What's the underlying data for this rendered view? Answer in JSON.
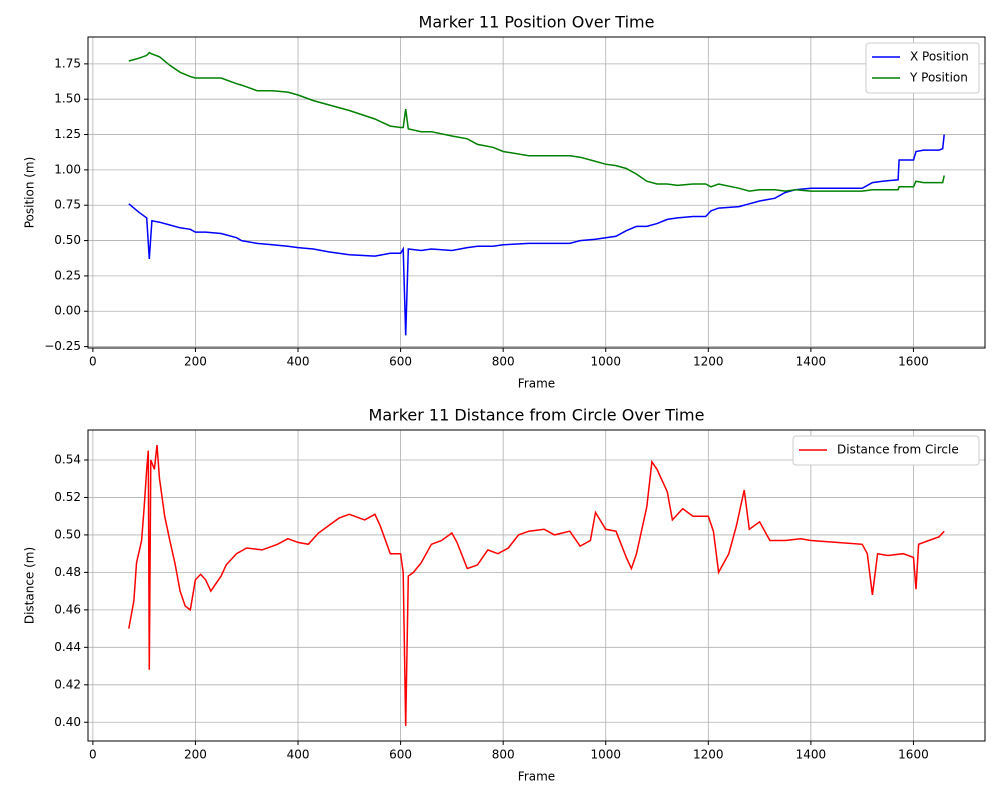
{
  "chart_data": [
    {
      "type": "line",
      "title": "Marker 11 Position Over Time",
      "xlabel": "Frame",
      "ylabel": "Position (m)",
      "x": [
        70,
        90,
        105,
        110,
        115,
        130,
        150,
        170,
        190,
        200,
        220,
        250,
        280,
        290,
        320,
        350,
        380,
        400,
        430,
        460,
        500,
        550,
        580,
        600,
        605,
        610,
        615,
        640,
        660,
        700,
        730,
        750,
        780,
        800,
        850,
        900,
        930,
        950,
        980,
        1000,
        1020,
        1040,
        1060,
        1080,
        1100,
        1120,
        1140,
        1170,
        1195,
        1205,
        1220,
        1260,
        1280,
        1300,
        1330,
        1350,
        1370,
        1400,
        1450,
        1500,
        1520,
        1540,
        1570,
        1572,
        1600,
        1605,
        1620,
        1650,
        1657,
        1660
      ],
      "series": [
        {
          "name": "X Position",
          "color": "#0000ff",
          "values": [
            0.76,
            0.7,
            0.66,
            0.37,
            0.64,
            0.63,
            0.61,
            0.59,
            0.58,
            0.56,
            0.56,
            0.55,
            0.52,
            0.5,
            0.48,
            0.47,
            0.46,
            0.45,
            0.44,
            0.42,
            0.4,
            0.39,
            0.41,
            0.41,
            0.44,
            -0.17,
            0.44,
            0.43,
            0.44,
            0.43,
            0.45,
            0.46,
            0.46,
            0.47,
            0.48,
            0.48,
            0.48,
            0.5,
            0.51,
            0.52,
            0.53,
            0.57,
            0.6,
            0.6,
            0.62,
            0.65,
            0.66,
            0.67,
            0.67,
            0.71,
            0.73,
            0.74,
            0.76,
            0.78,
            0.8,
            0.84,
            0.86,
            0.87,
            0.87,
            0.87,
            0.91,
            0.92,
            0.93,
            1.07,
            1.07,
            1.13,
            1.14,
            1.14,
            1.15,
            1.25
          ]
        },
        {
          "name": "Y Position",
          "color": "#008000",
          "values": [
            1.77,
            1.79,
            1.81,
            1.83,
            1.82,
            1.8,
            1.74,
            1.69,
            1.66,
            1.65,
            1.65,
            1.65,
            1.61,
            1.6,
            1.56,
            1.56,
            1.55,
            1.53,
            1.49,
            1.46,
            1.42,
            1.36,
            1.31,
            1.3,
            1.3,
            1.43,
            1.29,
            1.27,
            1.27,
            1.24,
            1.22,
            1.18,
            1.16,
            1.13,
            1.1,
            1.1,
            1.1,
            1.09,
            1.06,
            1.04,
            1.03,
            1.01,
            0.97,
            0.92,
            0.9,
            0.9,
            0.89,
            0.9,
            0.9,
            0.88,
            0.9,
            0.87,
            0.85,
            0.86,
            0.86,
            0.85,
            0.86,
            0.85,
            0.85,
            0.85,
            0.86,
            0.86,
            0.86,
            0.88,
            0.88,
            0.92,
            0.91,
            0.91,
            0.91,
            0.96
          ]
        }
      ],
      "xlim": [
        -9.5,
        1739.5
      ],
      "xticks": [
        0,
        200,
        400,
        600,
        800,
        1000,
        1200,
        1400,
        1600
      ],
      "ylim": [
        -0.26,
        1.94
      ],
      "yticks": [
        {
          "value": -0.25,
          "label": "−0.25"
        },
        {
          "value": 0,
          "label": "0.00"
        },
        0.25,
        {
          "value": 0.5,
          "label": "0.50"
        },
        0.75,
        {
          "value": 1,
          "label": "1.00"
        },
        1.25,
        {
          "value": 1.5,
          "label": "1.50"
        },
        1.75
      ],
      "grid": true,
      "legend": "upper-right"
    },
    {
      "type": "line",
      "title": "Marker 11 Distance from Circle Over Time",
      "xlabel": "Frame",
      "ylabel": "Distance (m)",
      "x": [
        70,
        80,
        85,
        95,
        100,
        105,
        108,
        110,
        113,
        120,
        125,
        130,
        140,
        150,
        160,
        170,
        180,
        190,
        200,
        210,
        220,
        230,
        250,
        260,
        280,
        300,
        330,
        360,
        380,
        400,
        420,
        440,
        460,
        480,
        500,
        530,
        550,
        560,
        580,
        600,
        605,
        610,
        615,
        625,
        640,
        660,
        680,
        700,
        710,
        730,
        750,
        770,
        790,
        810,
        830,
        850,
        880,
        900,
        930,
        950,
        970,
        980,
        1000,
        1020,
        1040,
        1050,
        1060,
        1080,
        1090,
        1100,
        1120,
        1130,
        1150,
        1170,
        1200,
        1210,
        1220,
        1240,
        1255,
        1270,
        1280,
        1300,
        1320,
        1350,
        1380,
        1400,
        1450,
        1500,
        1510,
        1520,
        1530,
        1550,
        1580,
        1600,
        1605,
        1610,
        1630,
        1650,
        1660
      ],
      "series": [
        {
          "name": "Distance from Circle",
          "color": "#ff0000",
          "values": [
            0.45,
            0.465,
            0.485,
            0.497,
            0.515,
            0.535,
            0.545,
            0.428,
            0.54,
            0.535,
            0.548,
            0.53,
            0.51,
            0.497,
            0.485,
            0.47,
            0.462,
            0.46,
            0.476,
            0.479,
            0.476,
            0.47,
            0.478,
            0.484,
            0.49,
            0.493,
            0.492,
            0.495,
            0.498,
            0.496,
            0.495,
            0.501,
            0.505,
            0.509,
            0.511,
            0.508,
            0.511,
            0.505,
            0.49,
            0.49,
            0.48,
            0.398,
            0.478,
            0.48,
            0.485,
            0.495,
            0.497,
            0.501,
            0.496,
            0.482,
            0.484,
            0.492,
            0.49,
            0.493,
            0.5,
            0.502,
            0.503,
            0.5,
            0.502,
            0.494,
            0.497,
            0.512,
            0.503,
            0.502,
            0.488,
            0.482,
            0.49,
            0.515,
            0.539,
            0.535,
            0.523,
            0.508,
            0.514,
            0.51,
            0.51,
            0.502,
            0.48,
            0.49,
            0.505,
            0.524,
            0.503,
            0.507,
            0.497,
            0.497,
            0.498,
            0.497,
            0.496,
            0.495,
            0.49,
            0.468,
            0.49,
            0.489,
            0.49,
            0.488,
            0.471,
            0.495,
            0.497,
            0.499,
            0.502
          ]
        }
      ],
      "xlim": [
        -9.5,
        1739.5
      ],
      "xticks": [
        0,
        200,
        400,
        600,
        800,
        1000,
        1200,
        1400,
        1600
      ],
      "ylim": [
        0.39,
        0.556
      ],
      "yticks": [
        {
          "value": 0.4,
          "label": "0.40"
        },
        0.42,
        0.44,
        0.46,
        0.48,
        {
          "value": 0.5,
          "label": "0.50"
        },
        0.52,
        0.54
      ],
      "grid": true,
      "legend": "upper-right"
    }
  ]
}
